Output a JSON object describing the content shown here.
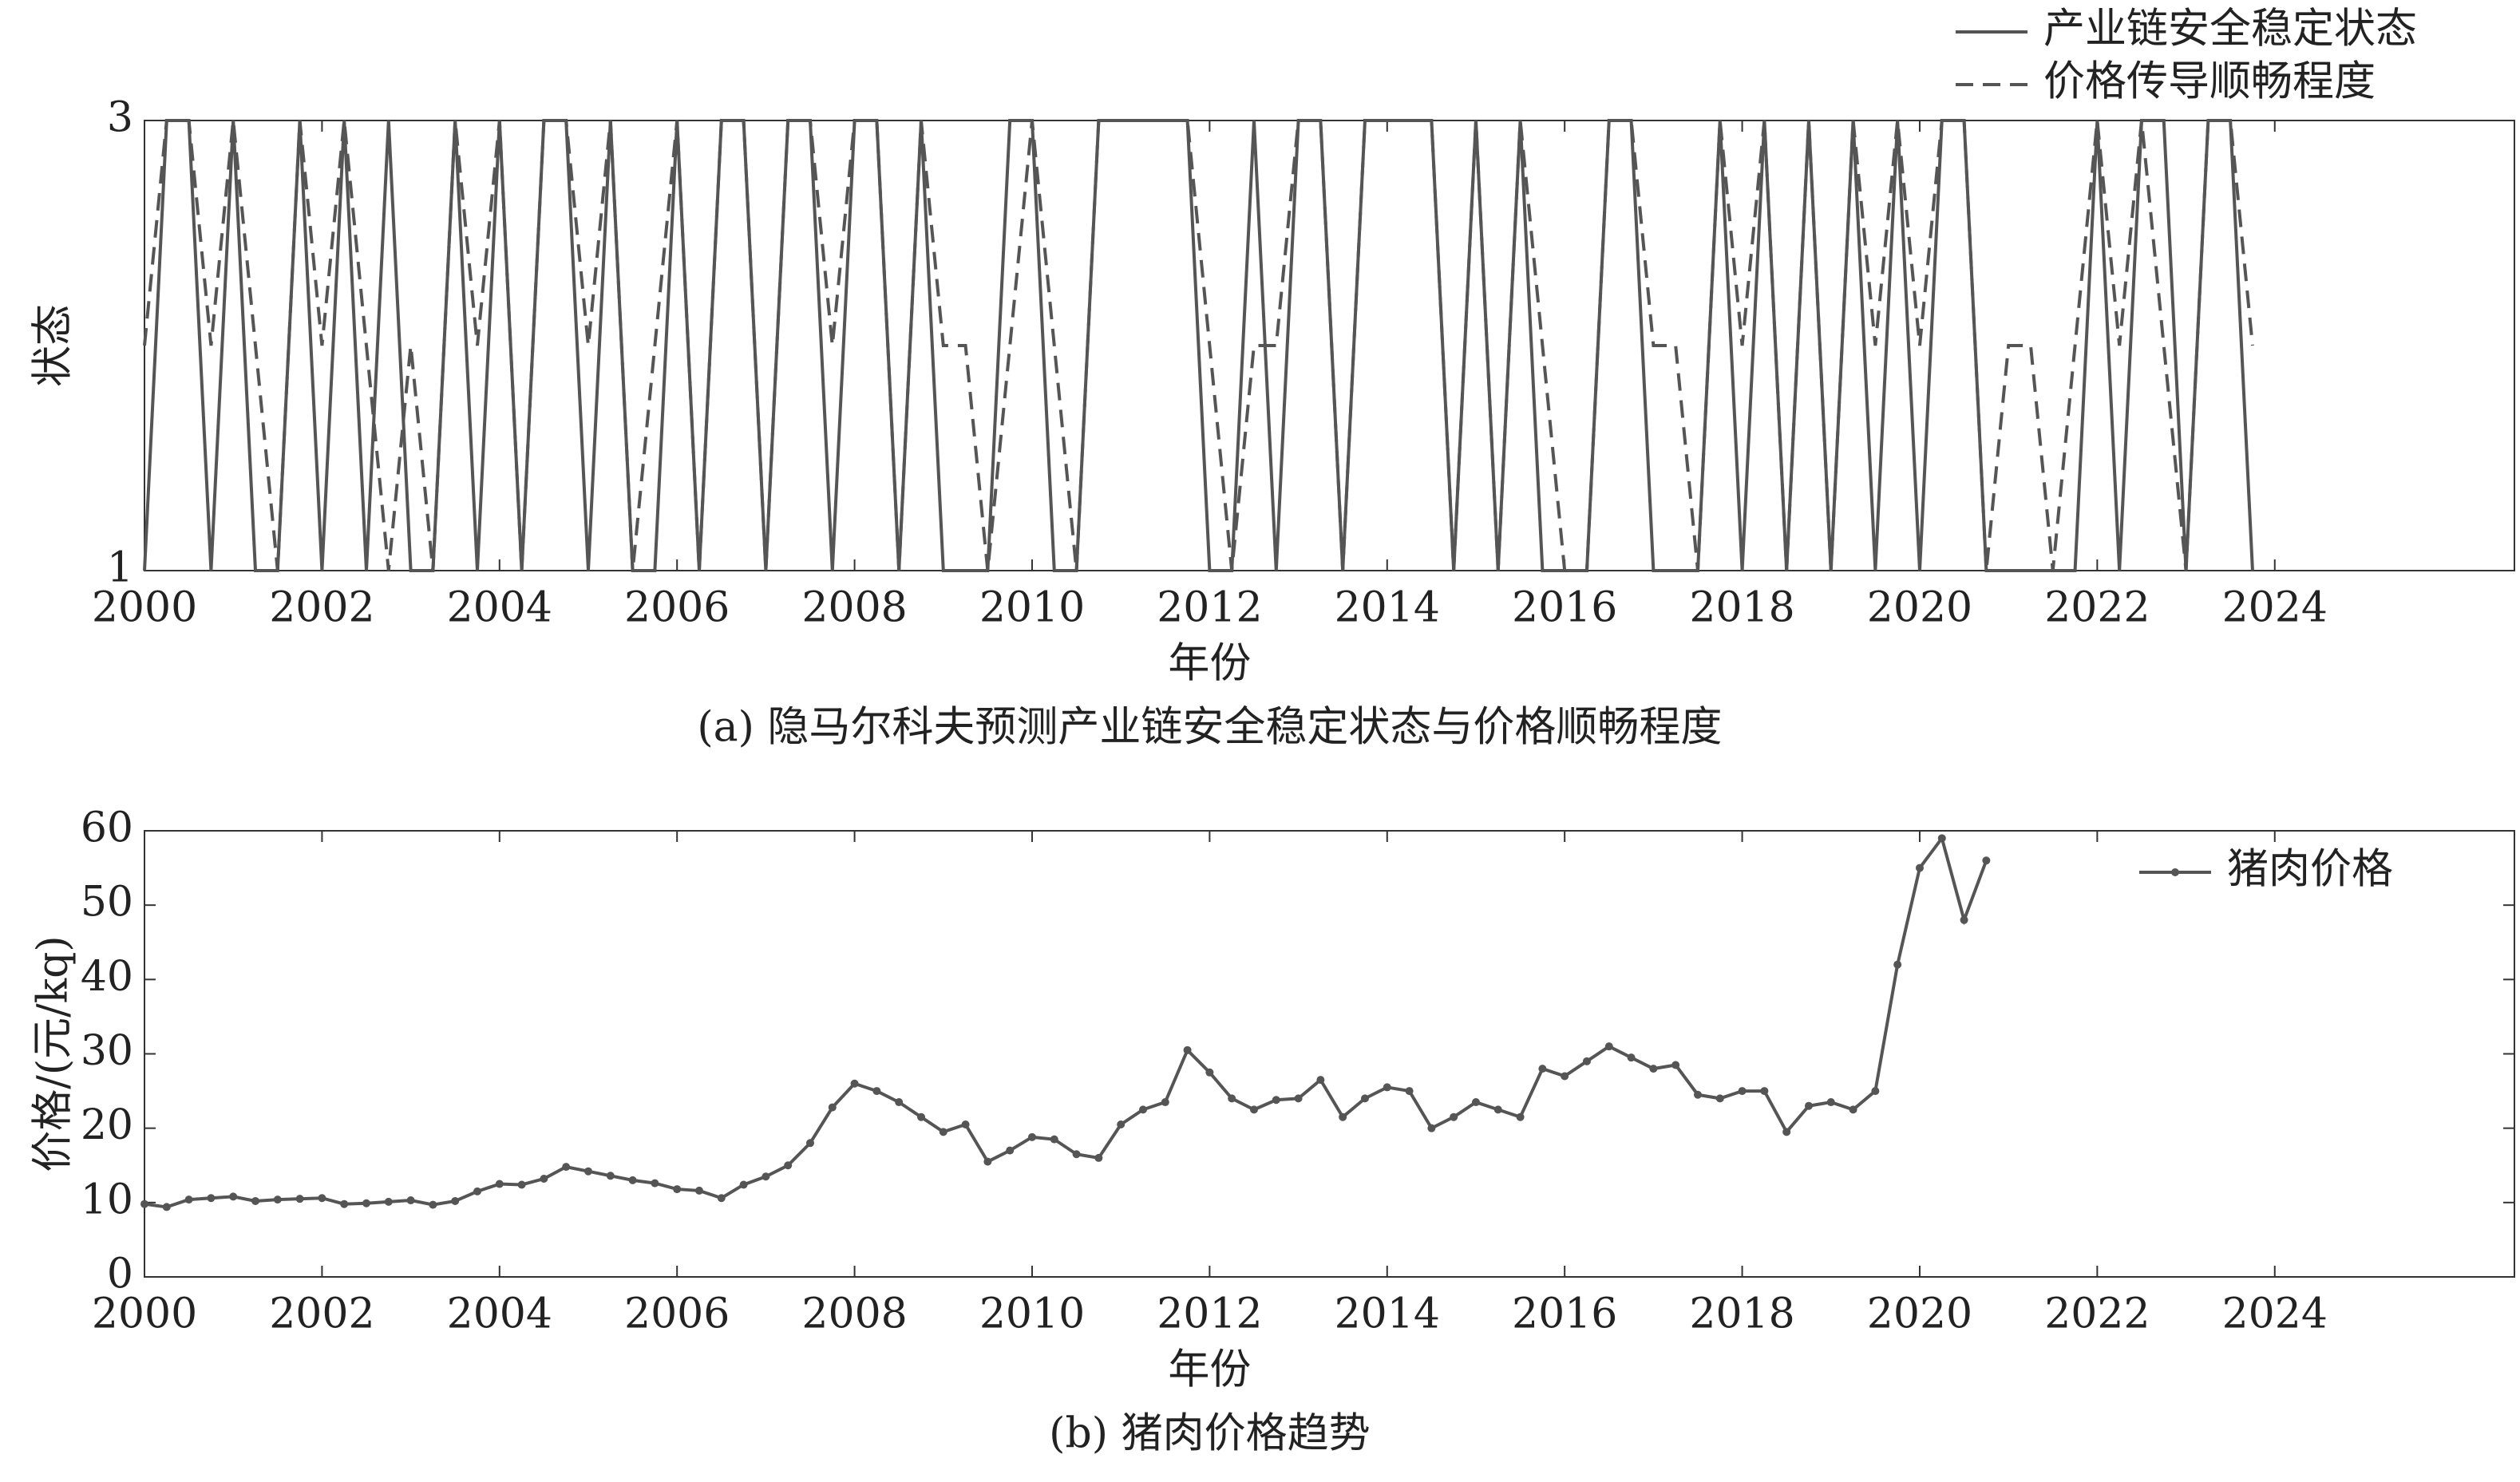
{
  "chart_data": [
    {
      "type": "line",
      "caption": "(a) 隐马尔科夫预测产业链安全稳定状态与价格顺畅程度",
      "xlabel": "年份",
      "ylabel": "状态",
      "x": [
        2000,
        2000.25,
        2000.5,
        2000.75,
        2001,
        2001.25,
        2001.5,
        2001.75,
        2002,
        2002.25,
        2002.5,
        2002.75,
        2003,
        2003.25,
        2003.5,
        2003.75,
        2004,
        2004.25,
        2004.5,
        2004.75,
        2005,
        2005.25,
        2005.5,
        2005.75,
        2006,
        2006.25,
        2006.5,
        2006.75,
        2007,
        2007.25,
        2007.5,
        2007.75,
        2008,
        2008.25,
        2008.5,
        2008.75,
        2009,
        2009.25,
        2009.5,
        2009.75,
        2010,
        2010.25,
        2010.5,
        2010.75,
        2011,
        2011.25,
        2011.5,
        2011.75,
        2012,
        2012.25,
        2012.5,
        2012.75,
        2013,
        2013.25,
        2013.5,
        2013.75,
        2014,
        2014.25,
        2014.5,
        2014.75,
        2015,
        2015.25,
        2015.5,
        2015.75,
        2016,
        2016.25,
        2016.5,
        2016.75,
        2017,
        2017.25,
        2017.5,
        2017.75,
        2018,
        2018.25,
        2018.5,
        2018.75,
        2019,
        2019.25,
        2019.5,
        2019.75,
        2020,
        2020.25,
        2020.5,
        2020.75,
        2021,
        2021.25,
        2021.5,
        2021.75,
        2022,
        2022.25,
        2022.5,
        2022.75,
        2023,
        2023.25,
        2023.5,
        2023.75
      ],
      "series": [
        {
          "name": "产业链安全稳定状态",
          "color": "#555555",
          "style": "solid",
          "values": [
            1,
            3,
            3,
            1,
            3,
            1,
            1,
            3,
            1,
            3,
            1,
            3,
            1,
            1,
            3,
            1,
            3,
            1,
            3,
            3,
            1,
            3,
            1,
            1,
            3,
            1,
            3,
            3,
            1,
            3,
            3,
            1,
            3,
            3,
            1,
            3,
            1,
            1,
            1,
            3,
            3,
            1,
            1,
            3,
            3,
            3,
            3,
            3,
            1,
            1,
            3,
            1,
            3,
            3,
            1,
            3,
            3,
            3,
            3,
            1,
            3,
            1,
            3,
            1,
            1,
            1,
            3,
            3,
            1,
            1,
            1,
            3,
            1,
            3,
            1,
            3,
            1,
            3,
            1,
            3,
            1,
            3,
            3,
            1,
            1,
            1,
            1,
            1,
            3,
            1,
            3,
            3,
            1,
            3,
            3,
            1
          ]
        },
        {
          "name": "价格传导顺畅程度",
          "color": "#555555",
          "style": "dashed",
          "values": [
            2,
            3,
            3,
            2,
            3,
            2,
            1,
            3,
            2,
            3,
            2,
            1,
            2,
            1,
            3,
            2,
            3,
            1,
            3,
            3,
            2,
            3,
            1,
            2,
            3,
            1,
            3,
            3,
            1,
            3,
            3,
            2,
            3,
            3,
            1,
            3,
            2,
            2,
            1,
            2,
            3,
            2,
            1,
            3,
            3,
            3,
            3,
            3,
            2,
            1,
            2,
            2,
            3,
            3,
            1,
            3,
            3,
            3,
            3,
            1,
            3,
            1,
            3,
            2,
            1,
            1,
            3,
            3,
            2,
            2,
            1,
            3,
            2,
            3,
            1,
            3,
            1,
            3,
            2,
            3,
            2,
            3,
            3,
            1,
            2,
            2,
            1,
            2,
            3,
            2,
            3,
            2,
            1,
            3,
            3,
            2
          ]
        }
      ],
      "xlim": [
        2000,
        2026.7
      ],
      "xticks": [
        2000,
        2002,
        2004,
        2006,
        2008,
        2010,
        2012,
        2014,
        2016,
        2018,
        2020,
        2022,
        2024
      ],
      "ylim": [
        1,
        3
      ],
      "yticks": [
        1,
        3
      ],
      "legend": "above-right"
    },
    {
      "type": "line",
      "caption": "(b) 猪肉价格趋势",
      "xlabel": "年份",
      "ylabel": "价格/(元/kq)",
      "x": [
        2000,
        2000.25,
        2000.5,
        2000.75,
        2001,
        2001.25,
        2001.5,
        2001.75,
        2002,
        2002.25,
        2002.5,
        2002.75,
        2003,
        2003.25,
        2003.5,
        2003.75,
        2004,
        2004.25,
        2004.5,
        2004.75,
        2005,
        2005.25,
        2005.5,
        2005.75,
        2006,
        2006.25,
        2006.5,
        2006.75,
        2007,
        2007.25,
        2007.5,
        2007.75,
        2008,
        2008.25,
        2008.5,
        2008.75,
        2009,
        2009.25,
        2009.5,
        2009.75,
        2010,
        2010.25,
        2010.5,
        2010.75,
        2011,
        2011.25,
        2011.5,
        2011.75,
        2012,
        2012.25,
        2012.5,
        2012.75,
        2013,
        2013.25,
        2013.5,
        2013.75,
        2014,
        2014.25,
        2014.5,
        2014.75,
        2015,
        2015.25,
        2015.5,
        2015.75,
        2016,
        2016.25,
        2016.5,
        2016.75,
        2017,
        2017.25,
        2017.5,
        2017.75,
        2018,
        2018.25,
        2018.5,
        2018.75,
        2019,
        2019.25,
        2019.5,
        2019.75,
        2020,
        2020.25,
        2020.5,
        2020.75
      ],
      "series": [
        {
          "name": "猪肉价格",
          "color": "#555555",
          "style": "solid",
          "marker": "dot",
          "values": [
            9.8,
            9.4,
            10.4,
            10.6,
            10.8,
            10.2,
            10.4,
            10.5,
            10.6,
            9.8,
            9.9,
            10.1,
            10.3,
            9.7,
            10.2,
            11.5,
            12.5,
            12.4,
            13.2,
            14.8,
            14.2,
            13.6,
            13.0,
            12.6,
            11.8,
            11.6,
            10.6,
            12.4,
            13.5,
            15.0,
            18.0,
            22.8,
            26.0,
            25.0,
            23.5,
            21.5,
            19.5,
            20.5,
            15.5,
            17.0,
            18.8,
            18.5,
            16.5,
            16.0,
            20.5,
            22.5,
            23.5,
            30.5,
            27.5,
            24.0,
            22.5,
            23.8,
            24.0,
            26.5,
            21.5,
            24.0,
            25.5,
            25.0,
            20.0,
            21.5,
            23.5,
            22.5,
            21.5,
            28.0,
            27.0,
            29.0,
            31.0,
            29.5,
            28.0,
            28.5,
            24.5,
            24.0,
            25.0,
            25.0,
            19.5,
            23.0,
            23.5,
            22.5,
            25.0,
            42.0,
            55.0,
            59.0,
            48.0,
            56.0
          ]
        }
      ],
      "xlim": [
        2000,
        2026.7
      ],
      "xticks": [
        2000,
        2002,
        2004,
        2006,
        2008,
        2010,
        2012,
        2014,
        2016,
        2018,
        2020,
        2022,
        2024
      ],
      "ylim": [
        0,
        60
      ],
      "yticks": [
        0,
        10,
        20,
        30,
        40,
        50,
        60
      ],
      "legend": "upper-right"
    }
  ]
}
